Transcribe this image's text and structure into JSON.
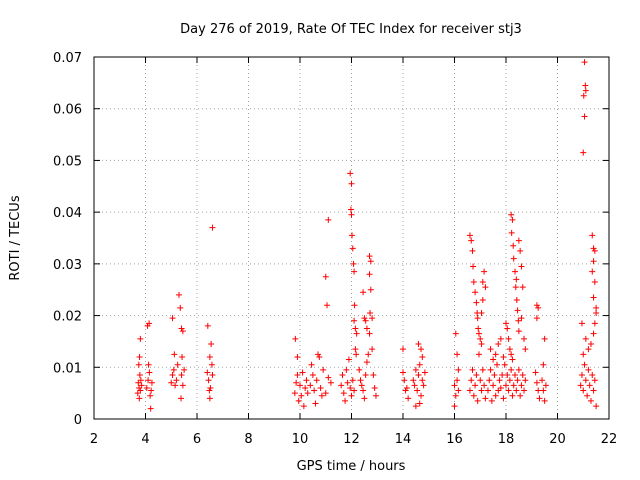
{
  "chart_data": {
    "type": "scatter",
    "title": "Day 276 of 2019, Rate Of TEC Index for receiver stj3",
    "xlabel": "GPS time / hours",
    "ylabel": "ROTI / TECUs",
    "xlim": [
      2,
      22
    ],
    "ylim": [
      0,
      0.07
    ],
    "x_ticks": [
      2,
      4,
      6,
      8,
      10,
      12,
      14,
      16,
      18,
      20,
      22
    ],
    "x_tick_labels": [
      "2",
      "4",
      "6",
      "8",
      "10",
      "12",
      "14",
      "16",
      "18",
      "20",
      "22"
    ],
    "y_ticks": [
      0,
      0.01,
      0.02,
      0.03,
      0.04,
      0.05,
      0.06,
      0.07
    ],
    "y_tick_labels": [
      "0",
      "0.01",
      "0.02",
      "0.03",
      "0.04",
      "0.05",
      "0.06",
      "0.07"
    ],
    "grid": true,
    "marker": "+",
    "color": "#ff0000",
    "series": [
      {
        "name": "ROTI",
        "points": [
          [
            3.7,
            0.005
          ],
          [
            3.72,
            0.007
          ],
          [
            3.75,
            0.006
          ],
          [
            3.78,
            0.0085
          ],
          [
            3.8,
            0.0055
          ],
          [
            3.82,
            0.0075
          ],
          [
            3.74,
            0.0105
          ],
          [
            3.77,
            0.012
          ],
          [
            3.8,
            0.0155
          ],
          [
            3.76,
            0.004
          ],
          [
            3.85,
            0.0065
          ],
          [
            4.05,
            0.006
          ],
          [
            4.1,
            0.0075
          ],
          [
            4.15,
            0.009
          ],
          [
            4.18,
            0.0045
          ],
          [
            4.2,
            0.002
          ],
          [
            4.12,
            0.0105
          ],
          [
            4.08,
            0.018
          ],
          [
            4.14,
            0.0185
          ],
          [
            4.22,
            0.0055
          ],
          [
            4.25,
            0.007
          ],
          [
            5.0,
            0.007
          ],
          [
            5.05,
            0.0085
          ],
          [
            5.1,
            0.0095
          ],
          [
            5.12,
            0.0125
          ],
          [
            5.15,
            0.0065
          ],
          [
            5.05,
            0.0195
          ],
          [
            5.2,
            0.0075
          ],
          [
            5.25,
            0.0105
          ],
          [
            5.3,
            0.024
          ],
          [
            5.35,
            0.0215
          ],
          [
            5.4,
            0.0175
          ],
          [
            5.45,
            0.017
          ],
          [
            5.4,
            0.0085
          ],
          [
            5.45,
            0.0065
          ],
          [
            5.5,
            0.0095
          ],
          [
            5.42,
            0.012
          ],
          [
            5.38,
            0.004
          ],
          [
            6.4,
            0.009
          ],
          [
            6.45,
            0.0075
          ],
          [
            6.5,
            0.012
          ],
          [
            6.55,
            0.0145
          ],
          [
            6.42,
            0.018
          ],
          [
            6.48,
            0.0055
          ],
          [
            6.52,
            0.006
          ],
          [
            6.58,
            0.0105
          ],
          [
            6.6,
            0.037
          ],
          [
            6.5,
            0.004
          ],
          [
            6.6,
            0.0085
          ],
          [
            9.8,
            0.005
          ],
          [
            9.85,
            0.007
          ],
          [
            9.9,
            0.0085
          ],
          [
            9.95,
            0.0035
          ],
          [
            9.82,
            0.0155
          ],
          [
            9.9,
            0.012
          ],
          [
            10.0,
            0.0065
          ],
          [
            10.05,
            0.0045
          ],
          [
            10.1,
            0.009
          ],
          [
            10.15,
            0.0025
          ],
          [
            10.2,
            0.006
          ],
          [
            10.25,
            0.0075
          ],
          [
            10.3,
            0.005
          ],
          [
            10.4,
            0.0065
          ],
          [
            10.45,
            0.0105
          ],
          [
            10.5,
            0.0085
          ],
          [
            10.55,
            0.0055
          ],
          [
            10.6,
            0.003
          ],
          [
            10.65,
            0.0075
          ],
          [
            10.7,
            0.0125
          ],
          [
            10.75,
            0.012
          ],
          [
            10.8,
            0.006
          ],
          [
            10.85,
            0.0045
          ],
          [
            10.9,
            0.0095
          ],
          [
            11.0,
            0.0275
          ],
          [
            11.05,
            0.022
          ],
          [
            11.1,
            0.0385
          ],
          [
            11.2,
            0.007
          ],
          [
            11.1,
            0.008
          ],
          [
            11.0,
            0.005
          ],
          [
            11.6,
            0.0065
          ],
          [
            11.65,
            0.0085
          ],
          [
            11.7,
            0.005
          ],
          [
            11.75,
            0.0035
          ],
          [
            11.8,
            0.0095
          ],
          [
            11.85,
            0.007
          ],
          [
            11.9,
            0.0115
          ],
          [
            11.95,
            0.006
          ],
          [
            12.0,
            0.0045
          ],
          [
            12.05,
            0.0075
          ],
          [
            12.1,
            0.0055
          ],
          [
            11.95,
            0.0475
          ],
          [
            12.0,
            0.0455
          ],
          [
            11.98,
            0.0405
          ],
          [
            12.0,
            0.0395
          ],
          [
            12.02,
            0.0355
          ],
          [
            12.05,
            0.033
          ],
          [
            12.08,
            0.03
          ],
          [
            12.1,
            0.0285
          ],
          [
            12.12,
            0.022
          ],
          [
            12.1,
            0.019
          ],
          [
            12.15,
            0.0175
          ],
          [
            12.2,
            0.0165
          ],
          [
            12.15,
            0.0135
          ],
          [
            12.18,
            0.0125
          ],
          [
            12.3,
            0.0095
          ],
          [
            12.35,
            0.0075
          ],
          [
            12.4,
            0.0065
          ],
          [
            12.45,
            0.0055
          ],
          [
            12.5,
            0.004
          ],
          [
            12.55,
            0.0085
          ],
          [
            12.6,
            0.011
          ],
          [
            12.65,
            0.0125
          ],
          [
            12.45,
            0.0245
          ],
          [
            12.5,
            0.0195
          ],
          [
            12.55,
            0.019
          ],
          [
            12.6,
            0.0175
          ],
          [
            12.7,
            0.0165
          ],
          [
            12.7,
            0.0315
          ],
          [
            12.75,
            0.0305
          ],
          [
            12.7,
            0.028
          ],
          [
            12.75,
            0.025
          ],
          [
            12.8,
            0.0135
          ],
          [
            12.85,
            0.0085
          ],
          [
            12.9,
            0.006
          ],
          [
            12.95,
            0.0045
          ],
          [
            12.8,
            0.0195
          ],
          [
            12.72,
            0.0205
          ],
          [
            14.0,
            0.009
          ],
          [
            14.05,
            0.0075
          ],
          [
            14.1,
            0.0055
          ],
          [
            14.0,
            0.0135
          ],
          [
            14.15,
            0.006
          ],
          [
            14.2,
            0.004
          ],
          [
            14.4,
            0.0075
          ],
          [
            14.45,
            0.0065
          ],
          [
            14.5,
            0.0095
          ],
          [
            14.55,
            0.0055
          ],
          [
            14.6,
            0.0085
          ],
          [
            14.65,
            0.0105
          ],
          [
            14.7,
            0.0045
          ],
          [
            14.75,
            0.0075
          ],
          [
            14.8,
            0.0065
          ],
          [
            14.85,
            0.009
          ],
          [
            14.6,
            0.0145
          ],
          [
            14.7,
            0.0135
          ],
          [
            14.75,
            0.012
          ],
          [
            14.5,
            0.0025
          ],
          [
            14.65,
            0.003
          ],
          [
            16.0,
            0.0065
          ],
          [
            16.05,
            0.0045
          ],
          [
            16.1,
            0.0075
          ],
          [
            16.05,
            0.0165
          ],
          [
            16.1,
            0.0125
          ],
          [
            16.15,
            0.0095
          ],
          [
            16.0,
            0.0025
          ],
          [
            16.15,
            0.0055
          ],
          [
            16.6,
            0.0055
          ],
          [
            16.65,
            0.0075
          ],
          [
            16.7,
            0.0095
          ],
          [
            16.75,
            0.0045
          ],
          [
            16.8,
            0.0065
          ],
          [
            16.85,
            0.0085
          ],
          [
            16.9,
            0.0035
          ],
          [
            16.95,
            0.0125
          ],
          [
            17.0,
            0.0075
          ],
          [
            17.05,
            0.0055
          ],
          [
            17.1,
            0.0095
          ],
          [
            17.15,
            0.0065
          ],
          [
            17.2,
            0.004
          ],
          [
            16.6,
            0.0355
          ],
          [
            16.65,
            0.0345
          ],
          [
            16.7,
            0.0325
          ],
          [
            16.72,
            0.0295
          ],
          [
            16.75,
            0.0265
          ],
          [
            16.8,
            0.0245
          ],
          [
            16.85,
            0.0225
          ],
          [
            16.88,
            0.0205
          ],
          [
            16.9,
            0.0195
          ],
          [
            16.92,
            0.0175
          ],
          [
            16.95,
            0.0165
          ],
          [
            17.0,
            0.0155
          ],
          [
            17.05,
            0.0145
          ],
          [
            17.1,
            0.0265
          ],
          [
            17.15,
            0.0285
          ],
          [
            17.2,
            0.0255
          ],
          [
            17.1,
            0.023
          ],
          [
            17.05,
            0.0205
          ],
          [
            17.3,
            0.0055
          ],
          [
            17.35,
            0.0075
          ],
          [
            17.4,
            0.0095
          ],
          [
            17.45,
            0.0035
          ],
          [
            17.5,
            0.0065
          ],
          [
            17.55,
            0.0085
          ],
          [
            17.6,
            0.0045
          ],
          [
            17.65,
            0.0105
          ],
          [
            17.7,
            0.0055
          ],
          [
            17.75,
            0.0075
          ],
          [
            17.8,
            0.006
          ],
          [
            17.85,
            0.0085
          ],
          [
            17.9,
            0.004
          ],
          [
            17.6,
            0.0125
          ],
          [
            17.7,
            0.0145
          ],
          [
            17.8,
            0.0155
          ],
          [
            17.9,
            0.012
          ],
          [
            17.95,
            0.0105
          ],
          [
            17.5,
            0.0115
          ],
          [
            17.4,
            0.0135
          ],
          [
            18.0,
            0.0065
          ],
          [
            18.05,
            0.0085
          ],
          [
            18.1,
            0.0055
          ],
          [
            18.15,
            0.0075
          ],
          [
            18.2,
            0.0095
          ],
          [
            18.25,
            0.0045
          ],
          [
            18.3,
            0.0065
          ],
          [
            18.35,
            0.0085
          ],
          [
            18.4,
            0.0055
          ],
          [
            18.45,
            0.0075
          ],
          [
            18.5,
            0.0095
          ],
          [
            18.55,
            0.0045
          ],
          [
            18.6,
            0.0065
          ],
          [
            18.65,
            0.0085
          ],
          [
            18.7,
            0.0055
          ],
          [
            18.75,
            0.0075
          ],
          [
            18.0,
            0.0185
          ],
          [
            18.05,
            0.0175
          ],
          [
            18.1,
            0.0155
          ],
          [
            18.15,
            0.0135
          ],
          [
            18.2,
            0.0125
          ],
          [
            18.25,
            0.0115
          ],
          [
            18.2,
            0.0395
          ],
          [
            18.25,
            0.0385
          ],
          [
            18.22,
            0.036
          ],
          [
            18.28,
            0.0335
          ],
          [
            18.3,
            0.031
          ],
          [
            18.35,
            0.0285
          ],
          [
            18.4,
            0.027
          ],
          [
            18.38,
            0.0255
          ],
          [
            18.42,
            0.023
          ],
          [
            18.45,
            0.021
          ],
          [
            18.48,
            0.019
          ],
          [
            18.5,
            0.017
          ],
          [
            18.5,
            0.0345
          ],
          [
            18.55,
            0.0325
          ],
          [
            18.6,
            0.0295
          ],
          [
            18.65,
            0.0255
          ],
          [
            18.6,
            0.0195
          ],
          [
            18.7,
            0.0155
          ],
          [
            18.75,
            0.0135
          ],
          [
            19.2,
            0.022
          ],
          [
            19.25,
            0.0215
          ],
          [
            19.2,
            0.0195
          ],
          [
            19.15,
            0.009
          ],
          [
            19.2,
            0.007
          ],
          [
            19.25,
            0.0055
          ],
          [
            19.3,
            0.004
          ],
          [
            19.4,
            0.0075
          ],
          [
            19.45,
            0.0055
          ],
          [
            19.5,
            0.0035
          ],
          [
            19.55,
            0.0065
          ],
          [
            19.5,
            0.0155
          ],
          [
            19.45,
            0.0105
          ],
          [
            21.0,
            0.0515
          ],
          [
            21.05,
            0.0585
          ],
          [
            21.02,
            0.0625
          ],
          [
            21.08,
            0.0645
          ],
          [
            21.1,
            0.0635
          ],
          [
            21.05,
            0.069
          ],
          [
            20.9,
            0.0065
          ],
          [
            20.95,
            0.0085
          ],
          [
            21.0,
            0.0055
          ],
          [
            21.05,
            0.0105
          ],
          [
            21.1,
            0.0075
          ],
          [
            21.15,
            0.0045
          ],
          [
            21.2,
            0.0095
          ],
          [
            21.25,
            0.0065
          ],
          [
            21.3,
            0.0035
          ],
          [
            21.35,
            0.0085
          ],
          [
            21.4,
            0.0055
          ],
          [
            21.45,
            0.0075
          ],
          [
            21.5,
            0.0025
          ],
          [
            20.95,
            0.0185
          ],
          [
            21.0,
            0.0125
          ],
          [
            21.1,
            0.0155
          ],
          [
            21.2,
            0.0135
          ],
          [
            21.3,
            0.0145
          ],
          [
            21.4,
            0.0165
          ],
          [
            21.45,
            0.0185
          ],
          [
            21.5,
            0.0205
          ],
          [
            21.35,
            0.0355
          ],
          [
            21.4,
            0.033
          ],
          [
            21.45,
            0.0325
          ],
          [
            21.4,
            0.0305
          ],
          [
            21.35,
            0.0285
          ],
          [
            21.45,
            0.0265
          ],
          [
            21.4,
            0.0235
          ],
          [
            21.5,
            0.0215
          ]
        ]
      }
    ]
  }
}
